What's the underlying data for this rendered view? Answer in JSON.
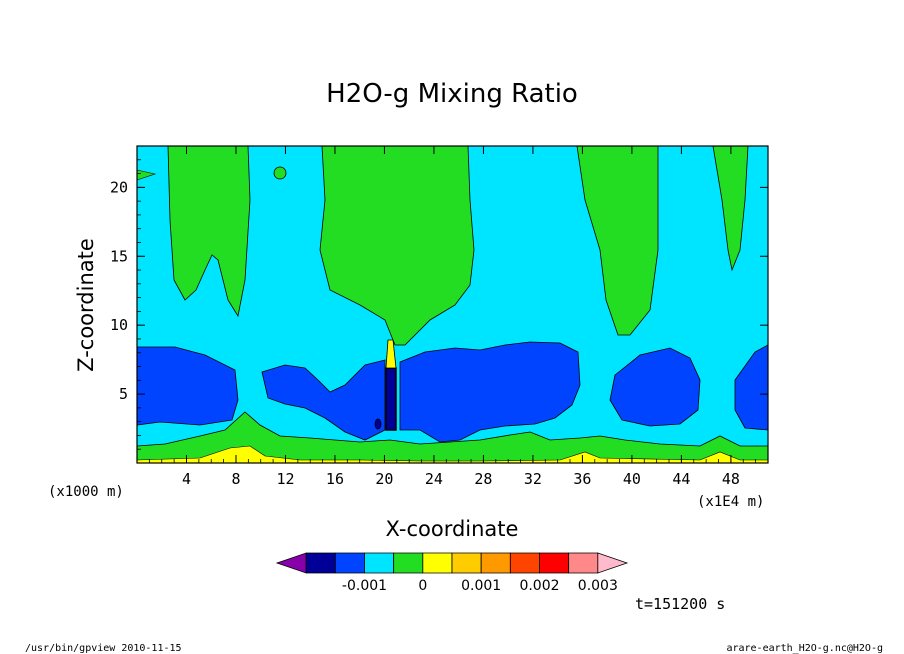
{
  "chart_data": {
    "type": "contour",
    "title": "H2O-g Mixing Ratio",
    "xlabel": "X-coordinate",
    "ylabel": "Z-coordinate",
    "x_units_left": "(x1000 m)",
    "x_units_right": "(x1E4 m)",
    "xlim": [
      0,
      51
    ],
    "ylim": [
      0,
      23
    ],
    "x_ticks": [
      "4",
      "8",
      "12",
      "16",
      "20",
      "24",
      "28",
      "32",
      "36",
      "40",
      "44",
      "48"
    ],
    "y_ticks": [
      "5",
      "10",
      "15",
      "20"
    ],
    "colorbar": {
      "levels": [
        -0.0025,
        -0.002,
        -0.0015,
        -0.001,
        -0.0005,
        0,
        0.0005,
        0.001,
        0.0015,
        0.002,
        0.0025,
        0.003,
        0.0035
      ],
      "tick_labels": [
        "-0.001",
        "0",
        "0.001",
        "0.002",
        "0.003"
      ],
      "colors": [
        "#8800aa",
        "#000099",
        "#0044ff",
        "#00e5ff",
        "#22dd22",
        "#ffff00",
        "#ffcc00",
        "#ff9900",
        "#ff4400",
        "#ff0000",
        "#ff8888",
        "#ffbbcc"
      ]
    },
    "time_label": "t=151200 s"
  },
  "footer": {
    "left": "/usr/bin/gpview   2010-11-15",
    "right": "arare-earth_H2O-g.nc@H2O-g"
  }
}
